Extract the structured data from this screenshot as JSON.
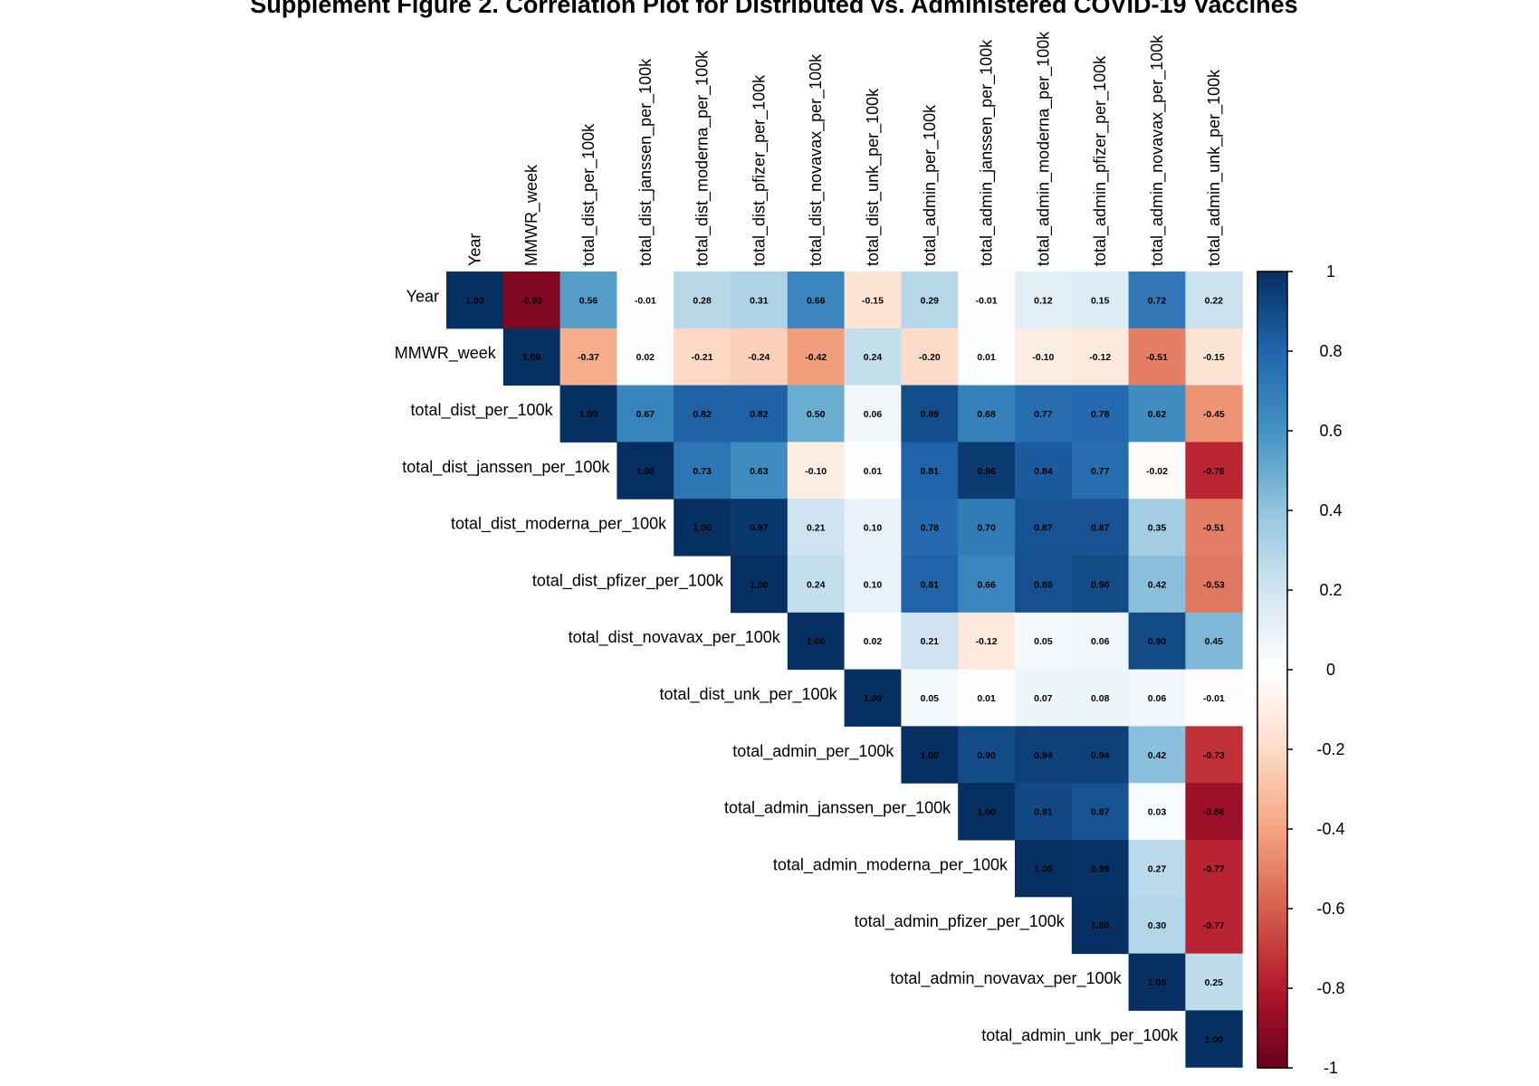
{
  "chart_data": {
    "type": "heatmap",
    "title": "Supplement Figure 2. Correlation Plot for Distributed vs. Administered COVID-19 Vaccines",
    "variables": [
      "Year",
      "MMWR_week",
      "total_dist_per_100k",
      "total_dist_janssen_per_100k",
      "total_dist_moderna_per_100k",
      "total_dist_pfizer_per_100k",
      "total_dist_novavax_per_100k",
      "total_dist_unk_per_100k",
      "total_admin_per_100k",
      "total_admin_janssen_per_100k",
      "total_admin_moderna_per_100k",
      "total_admin_pfizer_per_100k",
      "total_admin_novavax_per_100k",
      "total_admin_unk_per_100k"
    ],
    "layout": "upper-triangle",
    "upper_triangle_rows": [
      [
        1.0,
        -0.93,
        0.56,
        -0.01,
        0.28,
        0.31,
        0.66,
        -0.15,
        0.29,
        -0.01,
        0.12,
        0.15,
        0.72,
        0.22
      ],
      [
        1.0,
        -0.37,
        0.02,
        -0.21,
        -0.24,
        -0.42,
        0.24,
        -0.2,
        0.01,
        -0.1,
        -0.12,
        -0.51,
        -0.15
      ],
      [
        1.0,
        0.67,
        0.82,
        0.82,
        0.5,
        0.06,
        0.89,
        0.68,
        0.77,
        0.78,
        0.62,
        -0.45
      ],
      [
        1.0,
        0.73,
        0.63,
        -0.1,
        0.01,
        0.81,
        0.96,
        0.84,
        0.77,
        -0.02,
        -0.76
      ],
      [
        1.0,
        0.97,
        0.21,
        0.1,
        0.78,
        0.7,
        0.87,
        0.87,
        0.35,
        -0.51
      ],
      [
        1.0,
        0.24,
        0.1,
        0.81,
        0.66,
        0.88,
        0.9,
        0.42,
        -0.53
      ],
      [
        1.0,
        0.02,
        0.21,
        -0.12,
        0.05,
        0.06,
        0.9,
        0.45
      ],
      [
        1.0,
        0.05,
        0.01,
        0.07,
        0.08,
        0.06,
        -0.01
      ],
      [
        1.0,
        0.9,
        0.94,
        0.94,
        0.42,
        -0.73
      ],
      [
        1.0,
        0.91,
        0.87,
        0.03,
        -0.86
      ],
      [
        1.0,
        0.99,
        0.27,
        -0.77
      ],
      [
        1.0,
        0.3,
        -0.77
      ],
      [
        1.0,
        0.25
      ],
      [
        1.0
      ]
    ],
    "colorbar": {
      "range": [
        -1,
        1
      ],
      "ticks": [
        "1",
        "0.8",
        "0.6",
        "0.4",
        "0.2",
        "0",
        "-0.2",
        "-0.4",
        "-0.6",
        "-0.8",
        "-1"
      ],
      "palette": [
        "#67001F",
        "#B2182B",
        "#D6604D",
        "#F4A582",
        "#FDDBC7",
        "#FFFFFF",
        "#D1E5F0",
        "#92C5DE",
        "#4393C3",
        "#2166AC",
        "#053061"
      ]
    }
  }
}
